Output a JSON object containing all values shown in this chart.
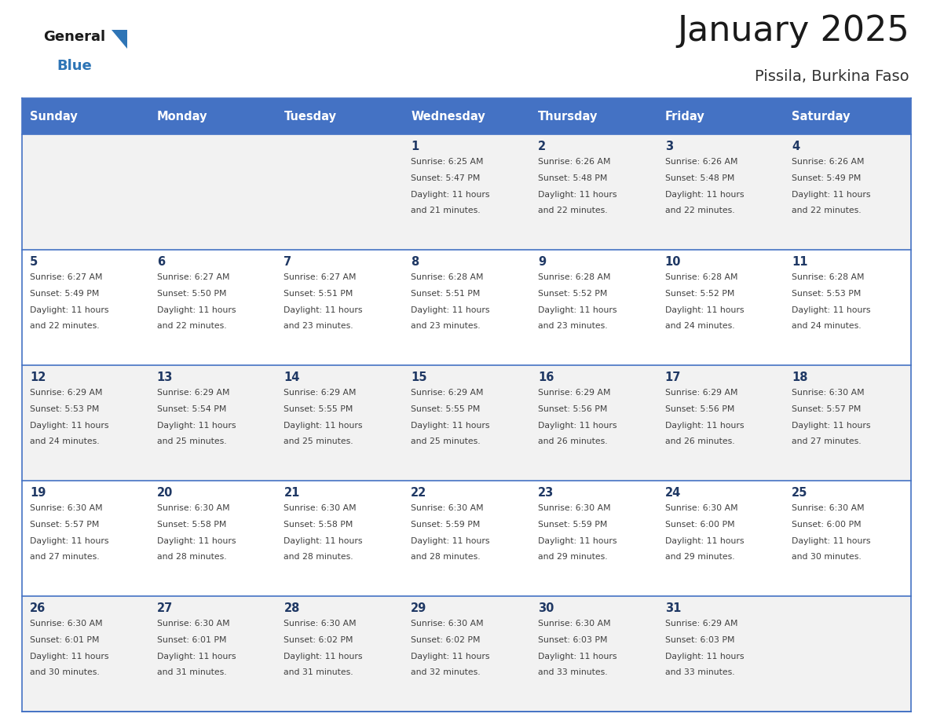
{
  "title": "January 2025",
  "subtitle": "Pissila, Burkina Faso",
  "days_of_week": [
    "Sunday",
    "Monday",
    "Tuesday",
    "Wednesday",
    "Thursday",
    "Friday",
    "Saturday"
  ],
  "header_bg": "#4472C4",
  "header_text": "#FFFFFF",
  "row_bg_light": "#F2F2F2",
  "row_bg_white": "#FFFFFF",
  "day_num_color": "#1F3864",
  "text_color": "#404040",
  "line_color": "#4472C4",
  "logo_black": "#1a1a1a",
  "logo_blue": "#2E75B6",
  "calendar": [
    [
      {
        "day": "",
        "sunrise": "",
        "sunset": "",
        "daylight": ""
      },
      {
        "day": "",
        "sunrise": "",
        "sunset": "",
        "daylight": ""
      },
      {
        "day": "",
        "sunrise": "",
        "sunset": "",
        "daylight": ""
      },
      {
        "day": "1",
        "sunrise": "Sunrise: 6:25 AM",
        "sunset": "Sunset: 5:47 PM",
        "daylight": "Daylight: 11 hours\nand 21 minutes."
      },
      {
        "day": "2",
        "sunrise": "Sunrise: 6:26 AM",
        "sunset": "Sunset: 5:48 PM",
        "daylight": "Daylight: 11 hours\nand 22 minutes."
      },
      {
        "day": "3",
        "sunrise": "Sunrise: 6:26 AM",
        "sunset": "Sunset: 5:48 PM",
        "daylight": "Daylight: 11 hours\nand 22 minutes."
      },
      {
        "day": "4",
        "sunrise": "Sunrise: 6:26 AM",
        "sunset": "Sunset: 5:49 PM",
        "daylight": "Daylight: 11 hours\nand 22 minutes."
      }
    ],
    [
      {
        "day": "5",
        "sunrise": "Sunrise: 6:27 AM",
        "sunset": "Sunset: 5:49 PM",
        "daylight": "Daylight: 11 hours\nand 22 minutes."
      },
      {
        "day": "6",
        "sunrise": "Sunrise: 6:27 AM",
        "sunset": "Sunset: 5:50 PM",
        "daylight": "Daylight: 11 hours\nand 22 minutes."
      },
      {
        "day": "7",
        "sunrise": "Sunrise: 6:27 AM",
        "sunset": "Sunset: 5:51 PM",
        "daylight": "Daylight: 11 hours\nand 23 minutes."
      },
      {
        "day": "8",
        "sunrise": "Sunrise: 6:28 AM",
        "sunset": "Sunset: 5:51 PM",
        "daylight": "Daylight: 11 hours\nand 23 minutes."
      },
      {
        "day": "9",
        "sunrise": "Sunrise: 6:28 AM",
        "sunset": "Sunset: 5:52 PM",
        "daylight": "Daylight: 11 hours\nand 23 minutes."
      },
      {
        "day": "10",
        "sunrise": "Sunrise: 6:28 AM",
        "sunset": "Sunset: 5:52 PM",
        "daylight": "Daylight: 11 hours\nand 24 minutes."
      },
      {
        "day": "11",
        "sunrise": "Sunrise: 6:28 AM",
        "sunset": "Sunset: 5:53 PM",
        "daylight": "Daylight: 11 hours\nand 24 minutes."
      }
    ],
    [
      {
        "day": "12",
        "sunrise": "Sunrise: 6:29 AM",
        "sunset": "Sunset: 5:53 PM",
        "daylight": "Daylight: 11 hours\nand 24 minutes."
      },
      {
        "day": "13",
        "sunrise": "Sunrise: 6:29 AM",
        "sunset": "Sunset: 5:54 PM",
        "daylight": "Daylight: 11 hours\nand 25 minutes."
      },
      {
        "day": "14",
        "sunrise": "Sunrise: 6:29 AM",
        "sunset": "Sunset: 5:55 PM",
        "daylight": "Daylight: 11 hours\nand 25 minutes."
      },
      {
        "day": "15",
        "sunrise": "Sunrise: 6:29 AM",
        "sunset": "Sunset: 5:55 PM",
        "daylight": "Daylight: 11 hours\nand 25 minutes."
      },
      {
        "day": "16",
        "sunrise": "Sunrise: 6:29 AM",
        "sunset": "Sunset: 5:56 PM",
        "daylight": "Daylight: 11 hours\nand 26 minutes."
      },
      {
        "day": "17",
        "sunrise": "Sunrise: 6:29 AM",
        "sunset": "Sunset: 5:56 PM",
        "daylight": "Daylight: 11 hours\nand 26 minutes."
      },
      {
        "day": "18",
        "sunrise": "Sunrise: 6:30 AM",
        "sunset": "Sunset: 5:57 PM",
        "daylight": "Daylight: 11 hours\nand 27 minutes."
      }
    ],
    [
      {
        "day": "19",
        "sunrise": "Sunrise: 6:30 AM",
        "sunset": "Sunset: 5:57 PM",
        "daylight": "Daylight: 11 hours\nand 27 minutes."
      },
      {
        "day": "20",
        "sunrise": "Sunrise: 6:30 AM",
        "sunset": "Sunset: 5:58 PM",
        "daylight": "Daylight: 11 hours\nand 28 minutes."
      },
      {
        "day": "21",
        "sunrise": "Sunrise: 6:30 AM",
        "sunset": "Sunset: 5:58 PM",
        "daylight": "Daylight: 11 hours\nand 28 minutes."
      },
      {
        "day": "22",
        "sunrise": "Sunrise: 6:30 AM",
        "sunset": "Sunset: 5:59 PM",
        "daylight": "Daylight: 11 hours\nand 28 minutes."
      },
      {
        "day": "23",
        "sunrise": "Sunrise: 6:30 AM",
        "sunset": "Sunset: 5:59 PM",
        "daylight": "Daylight: 11 hours\nand 29 minutes."
      },
      {
        "day": "24",
        "sunrise": "Sunrise: 6:30 AM",
        "sunset": "Sunset: 6:00 PM",
        "daylight": "Daylight: 11 hours\nand 29 minutes."
      },
      {
        "day": "25",
        "sunrise": "Sunrise: 6:30 AM",
        "sunset": "Sunset: 6:00 PM",
        "daylight": "Daylight: 11 hours\nand 30 minutes."
      }
    ],
    [
      {
        "day": "26",
        "sunrise": "Sunrise: 6:30 AM",
        "sunset": "Sunset: 6:01 PM",
        "daylight": "Daylight: 11 hours\nand 30 minutes."
      },
      {
        "day": "27",
        "sunrise": "Sunrise: 6:30 AM",
        "sunset": "Sunset: 6:01 PM",
        "daylight": "Daylight: 11 hours\nand 31 minutes."
      },
      {
        "day": "28",
        "sunrise": "Sunrise: 6:30 AM",
        "sunset": "Sunset: 6:02 PM",
        "daylight": "Daylight: 11 hours\nand 31 minutes."
      },
      {
        "day": "29",
        "sunrise": "Sunrise: 6:30 AM",
        "sunset": "Sunset: 6:02 PM",
        "daylight": "Daylight: 11 hours\nand 32 minutes."
      },
      {
        "day": "30",
        "sunrise": "Sunrise: 6:30 AM",
        "sunset": "Sunset: 6:03 PM",
        "daylight": "Daylight: 11 hours\nand 33 minutes."
      },
      {
        "day": "31",
        "sunrise": "Sunrise: 6:29 AM",
        "sunset": "Sunset: 6:03 PM",
        "daylight": "Daylight: 11 hours\nand 33 minutes."
      },
      {
        "day": "",
        "sunrise": "",
        "sunset": "",
        "daylight": ""
      }
    ]
  ]
}
